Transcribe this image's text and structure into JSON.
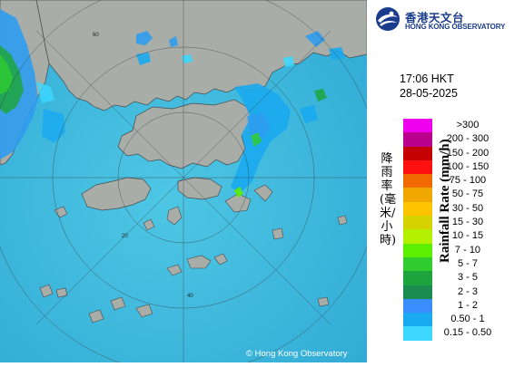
{
  "header": {
    "org_name_zh": "香港天文台",
    "org_name_en": "HONG KONG OBSERVATORY"
  },
  "observation": {
    "time": "17:06 HKT",
    "date": "28-05-2025"
  },
  "legend": {
    "title_zh": "降雨率(毫米/小時)",
    "title_en": "Rainfall Rate (mm/h)",
    "items": [
      {
        "label": ">300",
        "color": "#ee00ee"
      },
      {
        "label": "200 - 300",
        "color": "#b8008c"
      },
      {
        "label": "150 - 200",
        "color": "#c40000"
      },
      {
        "label": "100 - 150",
        "color": "#ff1010"
      },
      {
        "label": "75 - 100",
        "color": "#f06a00"
      },
      {
        "label": "50 - 75",
        "color": "#f0a800"
      },
      {
        "label": "30 - 50",
        "color": "#ffc400"
      },
      {
        "label": "15 - 30",
        "color": "#d6d200"
      },
      {
        "label": "10 - 15",
        "color": "#b2f000"
      },
      {
        "label": "7 - 10",
        "color": "#5cf000"
      },
      {
        "label": "5 - 7",
        "color": "#30cc30"
      },
      {
        "label": "3 - 5",
        "color": "#1ea43c"
      },
      {
        "label": "2 - 3",
        "color": "#1a8c50"
      },
      {
        "label": "1 - 2",
        "color": "#3a8cff"
      },
      {
        "label": "0.50 - 1",
        "color": "#1aaaf0"
      },
      {
        "label": "0.15 - 0.50",
        "color": "#3cd8ff"
      }
    ]
  },
  "map": {
    "copyright": "© Hong Kong Observatory",
    "ring_labels": [
      "60",
      "40",
      "20"
    ],
    "land_color": "#a8ada8",
    "sea_color": "#38b8d8"
  }
}
